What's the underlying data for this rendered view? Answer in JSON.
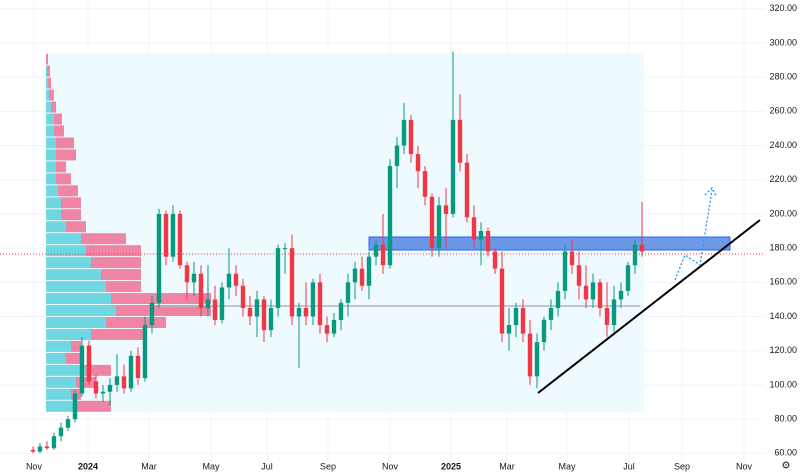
{
  "chart_data": {
    "type": "candlestick",
    "xlim": [
      -4.71,
      104.57
    ],
    "xticks": [
      {
        "value": 0.14,
        "label": "Nov"
      },
      {
        "value": 7.86,
        "label": "2024"
      },
      {
        "value": 16.57,
        "label": "Mar"
      },
      {
        "value": 25.43,
        "label": "May"
      },
      {
        "value": 33.43,
        "label": "Jul"
      },
      {
        "value": 42.14,
        "label": "Sep"
      },
      {
        "value": 51,
        "label": "Nov"
      },
      {
        "value": 59.71,
        "label": "2025"
      },
      {
        "value": 67.71,
        "label": "Mar"
      },
      {
        "value": 76.29,
        "label": "May"
      },
      {
        "value": 85.14,
        "label": "Jul"
      },
      {
        "value": 92.71,
        "label": "Sep"
      },
      {
        "value": 101.57,
        "label": "Nov"
      }
    ],
    "ylim": [
      47.9,
      325.1
    ],
    "yticks": [
      {
        "value": 60,
        "label": "60.00"
      },
      {
        "value": 80,
        "label": "80.00"
      },
      {
        "value": 100,
        "label": "100.00"
      },
      {
        "value": 120,
        "label": "120.00"
      },
      {
        "value": 140,
        "label": "140.00"
      },
      {
        "value": 160,
        "label": "160.00"
      },
      {
        "value": 180,
        "label": "180.00"
      },
      {
        "value": 200,
        "label": "200.00"
      },
      {
        "value": 220,
        "label": "220.00"
      },
      {
        "value": 240,
        "label": "240.00"
      },
      {
        "value": 260,
        "label": "260.00"
      },
      {
        "value": 280,
        "label": "280.00"
      },
      {
        "value": 300,
        "label": "300.00"
      },
      {
        "value": 320,
        "label": "320.00"
      }
    ],
    "grid": true,
    "up_color": "#089981",
    "down_color": "#f23645",
    "candles": [
      [
        62,
        64,
        60,
        61
      ],
      [
        61,
        66,
        60,
        64
      ],
      [
        64,
        67,
        62,
        63
      ],
      [
        63,
        72,
        62,
        70
      ],
      [
        70,
        78,
        67,
        75
      ],
      [
        75,
        82,
        73,
        80
      ],
      [
        80,
        97,
        78,
        95
      ],
      [
        95,
        128,
        93,
        123
      ],
      [
        123,
        126,
        100,
        102
      ],
      [
        102,
        106,
        92,
        95
      ],
      [
        95,
        100,
        90,
        96
      ],
      [
        96,
        104,
        88,
        100
      ],
      [
        100,
        118,
        96,
        105
      ],
      [
        105,
        112,
        95,
        98
      ],
      [
        98,
        120,
        96,
        117
      ],
      [
        117,
        122,
        100,
        104
      ],
      [
        104,
        140,
        102,
        135
      ],
      [
        135,
        152,
        130,
        148
      ],
      [
        148,
        203,
        145,
        200
      ],
      [
        200,
        202,
        170,
        175
      ],
      [
        175,
        205,
        172,
        200
      ],
      [
        200,
        202,
        168,
        170
      ],
      [
        170,
        172,
        150,
        160
      ],
      [
        160,
        172,
        152,
        165
      ],
      [
        165,
        170,
        140,
        145
      ],
      [
        145,
        170,
        140,
        150
      ],
      [
        150,
        158,
        135,
        138
      ],
      [
        138,
        160,
        136,
        157
      ],
      [
        157,
        180,
        150,
        165
      ],
      [
        165,
        170,
        152,
        158
      ],
      [
        158,
        162,
        140,
        145
      ],
      [
        145,
        152,
        135,
        140
      ],
      [
        140,
        155,
        128,
        150
      ],
      [
        150,
        152,
        125,
        132
      ],
      [
        132,
        150,
        128,
        145
      ],
      [
        145,
        182,
        140,
        180
      ],
      [
        180,
        183,
        165,
        180
      ],
      [
        180,
        188,
        135,
        140
      ],
      [
        140,
        148,
        110,
        145
      ],
      [
        145,
        160,
        135,
        140
      ],
      [
        140,
        162,
        135,
        160
      ],
      [
        160,
        165,
        130,
        135
      ],
      [
        135,
        140,
        125,
        130
      ],
      [
        130,
        142,
        128,
        138
      ],
      [
        138,
        150,
        132,
        148
      ],
      [
        148,
        165,
        140,
        160
      ],
      [
        160,
        172,
        150,
        168
      ],
      [
        168,
        175,
        155,
        158
      ],
      [
        158,
        178,
        150,
        175
      ],
      [
        175,
        185,
        170,
        182
      ],
      [
        182,
        200,
        165,
        170
      ],
      [
        170,
        232,
        168,
        228
      ],
      [
        228,
        245,
        215,
        240
      ],
      [
        240,
        265,
        235,
        255
      ],
      [
        255,
        258,
        230,
        235
      ],
      [
        235,
        240,
        215,
        225
      ],
      [
        225,
        228,
        205,
        210
      ],
      [
        210,
        212,
        175,
        180
      ],
      [
        180,
        210,
        175,
        205
      ],
      [
        205,
        215,
        180,
        200
      ],
      [
        200,
        295,
        198,
        255
      ],
      [
        255,
        270,
        225,
        230
      ],
      [
        230,
        235,
        195,
        198
      ],
      [
        198,
        205,
        180,
        185
      ],
      [
        185,
        195,
        170,
        190
      ],
      [
        190,
        192,
        175,
        178
      ],
      [
        178,
        180,
        165,
        168
      ],
      [
        168,
        178,
        125,
        130
      ],
      [
        130,
        145,
        120,
        135
      ],
      [
        135,
        148,
        128,
        145
      ],
      [
        145,
        150,
        125,
        130
      ],
      [
        130,
        138,
        100,
        105
      ],
      [
        105,
        130,
        98,
        125
      ],
      [
        125,
        140,
        120,
        138
      ],
      [
        138,
        150,
        132,
        145
      ],
      [
        145,
        160,
        140,
        155
      ],
      [
        155,
        182,
        150,
        178
      ],
      [
        178,
        185,
        165,
        170
      ],
      [
        170,
        178,
        150,
        158
      ],
      [
        158,
        170,
        145,
        150
      ],
      [
        150,
        165,
        145,
        160
      ],
      [
        160,
        162,
        140,
        145
      ],
      [
        145,
        160,
        128,
        135
      ],
      [
        135,
        158,
        130,
        150
      ],
      [
        150,
        160,
        145,
        155
      ],
      [
        155,
        172,
        152,
        170
      ],
      [
        170,
        185,
        165,
        182
      ],
      [
        182,
        207,
        175,
        178
      ]
    ],
    "volume_profile": {
      "bins": [
        84,
        91,
        98,
        105,
        112,
        119,
        126,
        133,
        140,
        147,
        154,
        161,
        168,
        175,
        182,
        189,
        196,
        203,
        210,
        217,
        224,
        231,
        238,
        245,
        252,
        259,
        266,
        273,
        280,
        287,
        294
      ],
      "up": [
        30,
        25,
        30,
        40,
        20,
        25,
        45,
        60,
        70,
        65,
        60,
        55,
        45,
        40,
        35,
        20,
        15,
        15,
        12,
        10,
        10,
        10,
        10,
        8,
        8,
        5,
        3,
        2,
        1,
        0
      ],
      "down": [
        35,
        10,
        20,
        25,
        15,
        10,
        55,
        60,
        95,
        100,
        35,
        40,
        50,
        55,
        45,
        20,
        20,
        20,
        20,
        15,
        10,
        20,
        18,
        10,
        8,
        5,
        5,
        3,
        3,
        2
      ],
      "up_color": "#5fd3df",
      "down_color": "#ef6f95",
      "area_color": "#eefafd"
    }
  }
}
